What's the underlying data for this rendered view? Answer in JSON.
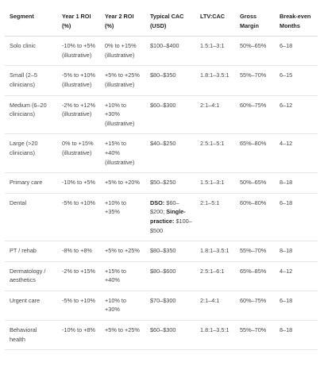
{
  "table": {
    "header": [
      "Segment",
      "Year 1 ROI (%)",
      "Year 2 ROI (%)",
      "Typical CAC (USD)",
      "LTV:CAC",
      "Gross Margin",
      "Break-even Months"
    ],
    "rows": [
      [
        "Solo clinic",
        "-10% to +5% (illustrative)",
        "0% to +15% (illustrative)",
        "$100–$400",
        "1.5:1–3:1",
        "50%–65%",
        "6–18"
      ],
      [
        "Small (2–5 clinicians)",
        "-5% to +10% (illustrative)",
        "+5% to +25% (illustrative)",
        "$80–$350",
        "1.8:1–3.5:1",
        "55%–70%",
        "6–15"
      ],
      [
        "Medium (6–20 clinicians)",
        "-2% to +12% (illustrative)",
        "+10% to +30% (illustrative)",
        "$60–$300",
        "2:1–4:1",
        "60%–75%",
        "6–12"
      ],
      [
        "Large (>20 clinicians)",
        "0% to +15% (illustrative)",
        "+15% to +40% (illustrative)",
        "$40–$250",
        "2.5:1–5:1",
        "65%–80%",
        "4–12"
      ],
      [
        "Primary care",
        "-10% to +5%",
        "+5% to +20%",
        "$50–$250",
        "1.5:1–3:1",
        "50%–65%",
        "8–18"
      ],
      [
        "Dental",
        "-5% to +10%",
        "+10% to +35%",
        [
          {
            "text": "DSO:",
            "bold": true
          },
          {
            "text": " $60–$200; ",
            "bold": false
          },
          {
            "text": "Single-practice:",
            "bold": true
          },
          {
            "text": " $100–$500",
            "bold": false
          }
        ],
        "2:1–5:1",
        "60%–80%",
        "6–18"
      ],
      [
        "PT / rehab",
        "-8% to +8%",
        "+5% to +25%",
        "$80–$350",
        "1.8:1–3.5:1",
        "55%–70%",
        "8–18"
      ],
      [
        "Dermatology / aesthetics",
        "-2% to +15%",
        "+15% to +40%",
        "$80–$600",
        "2.5:1–6:1",
        "65%–85%",
        "4–12"
      ],
      [
        "Urgent care",
        "-5% to +10%",
        "+10% to +30%",
        "$70–$300",
        "2:1–4:1",
        "60%–75%",
        "6–18"
      ],
      [
        "Behavioral health",
        "-10% to +8%",
        "+5% to +25%",
        "$60–$300",
        "1.8:1–3.5:1",
        "55%–70%",
        "8–18"
      ]
    ]
  }
}
